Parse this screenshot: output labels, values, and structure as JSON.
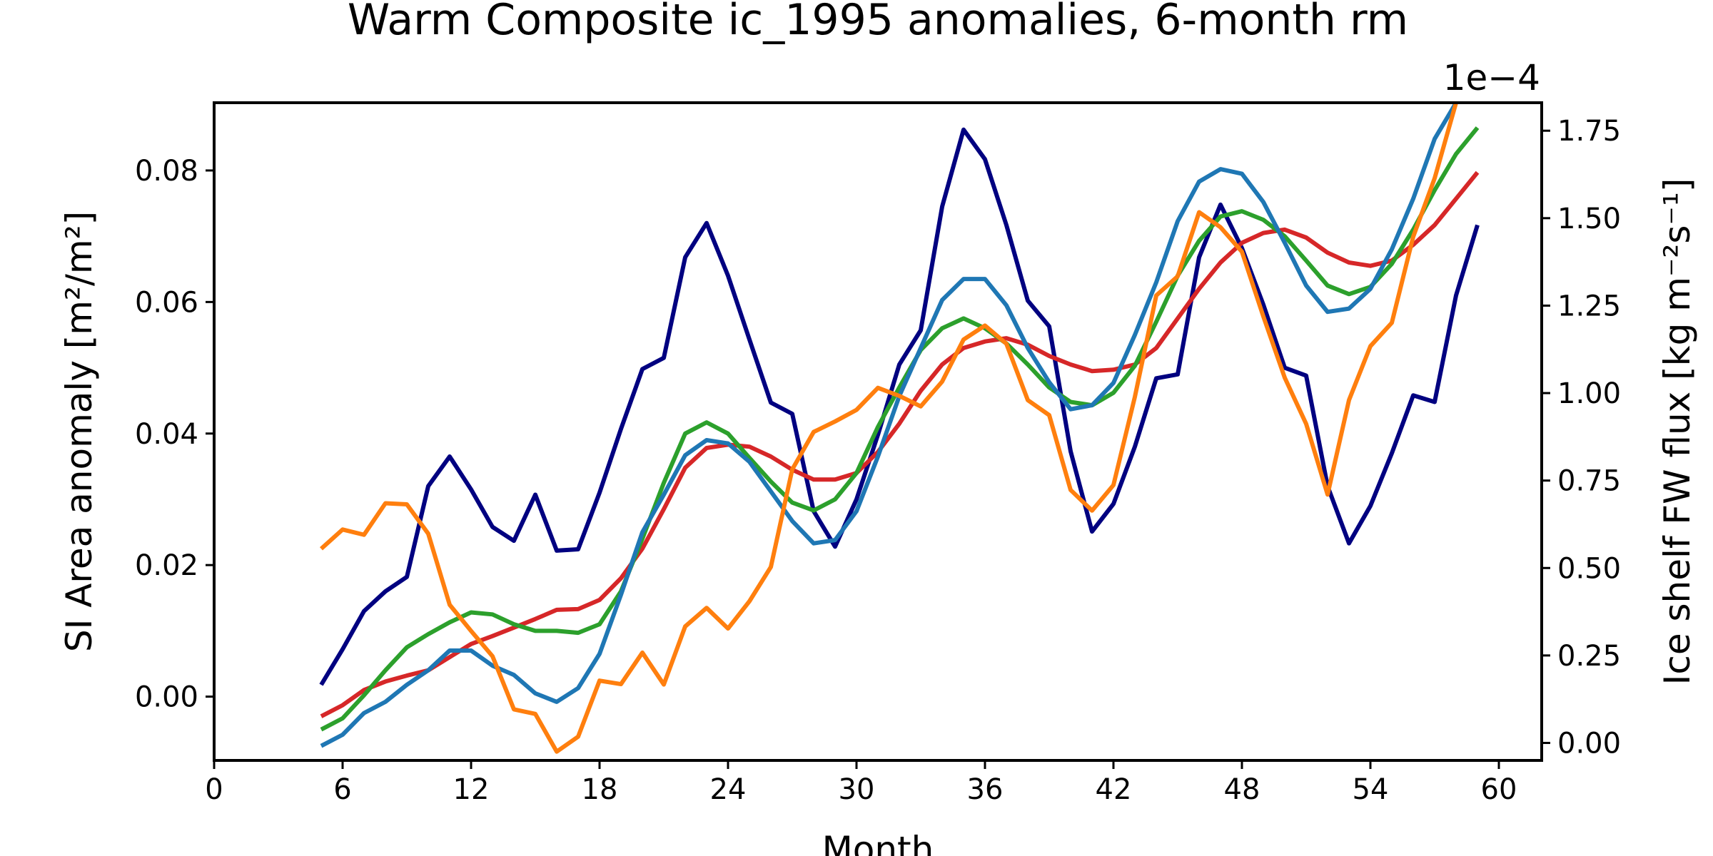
{
  "chart_data": {
    "type": "line",
    "title": "Warm Composite ic_1995 anomalies, 6-month rm",
    "xlabel": "Month",
    "ylabel": "SI Area anomaly [m²/m²]",
    "ylabel_right": "Ice shelf FW flux [kg m⁻²s⁻¹]",
    "right_axis_offset_label": "1e−4",
    "xlim": [
      0,
      62
    ],
    "ylim": [
      -0.0097,
      0.0903
    ],
    "ylim_right": [
      -0.05,
      1.83
    ],
    "xticks": [
      0,
      6,
      12,
      18,
      24,
      30,
      36,
      42,
      48,
      54,
      60
    ],
    "yticks_left": [
      0.0,
      0.02,
      0.04,
      0.06,
      0.08
    ],
    "yticks_left_labels": [
      "0.00",
      "0.02",
      "0.04",
      "0.06",
      "0.08"
    ],
    "yticks_right": [
      0.0,
      0.25,
      0.5,
      0.75,
      1.0,
      1.25,
      1.5,
      1.75
    ],
    "yticks_right_labels": [
      "0.00",
      "0.25",
      "0.50",
      "0.75",
      "1.00",
      "1.25",
      "1.50",
      "1.75"
    ],
    "grid": false,
    "legend": "none",
    "x": [
      5,
      6,
      7,
      8,
      9,
      10,
      11,
      12,
      13,
      14,
      15,
      16,
      17,
      18,
      19,
      20,
      21,
      22,
      23,
      24,
      25,
      26,
      27,
      28,
      29,
      30,
      31,
      32,
      33,
      34,
      35,
      36,
      37,
      38,
      39,
      40,
      41,
      42,
      43,
      44,
      45,
      46,
      47,
      48,
      49,
      50,
      51,
      52,
      53,
      54,
      55,
      56,
      57,
      58,
      59
    ],
    "series": [
      {
        "axis": "left",
        "color": "#000080",
        "values": [
          0.0018,
          0.0072,
          0.013,
          0.016,
          0.0182,
          0.032,
          0.0365,
          0.0315,
          0.0258,
          0.0237,
          0.0307,
          0.0222,
          0.0224,
          0.031,
          0.0407,
          0.0498,
          0.0515,
          0.0668,
          0.072,
          0.064,
          0.0543,
          0.0447,
          0.043,
          0.0282,
          0.0228,
          0.03,
          0.0398,
          0.0505,
          0.0557,
          0.0745,
          0.0862,
          0.0817,
          0.0717,
          0.0602,
          0.0563,
          0.0373,
          0.0251,
          0.0293,
          0.038,
          0.0484,
          0.049,
          0.0668,
          0.0748,
          0.0682,
          0.0596,
          0.05,
          0.0488,
          0.032,
          0.0233,
          0.029,
          0.037,
          0.0458,
          0.0448,
          0.061,
          0.0717
        ]
      },
      {
        "axis": "left",
        "color": "#d62728",
        "values": [
          -0.003,
          -0.0013,
          0.001,
          0.0023,
          0.0032,
          0.004,
          0.006,
          0.008,
          0.0092,
          0.0105,
          0.0118,
          0.0132,
          0.0133,
          0.0147,
          0.018,
          0.0225,
          0.0285,
          0.0348,
          0.0378,
          0.0383,
          0.038,
          0.0365,
          0.0345,
          0.033,
          0.033,
          0.034,
          0.0372,
          0.0415,
          0.0465,
          0.0505,
          0.053,
          0.054,
          0.0545,
          0.0535,
          0.0518,
          0.0505,
          0.0495,
          0.0497,
          0.0505,
          0.053,
          0.0575,
          0.062,
          0.066,
          0.069,
          0.0705,
          0.071,
          0.0698,
          0.0675,
          0.066,
          0.0655,
          0.0663,
          0.0687,
          0.0717,
          0.0757,
          0.0797
        ]
      },
      {
        "axis": "left",
        "color": "#2ca02c",
        "values": [
          -0.005,
          -0.0033,
          0.0002,
          0.004,
          0.0075,
          0.0095,
          0.0113,
          0.0128,
          0.0125,
          0.011,
          0.01,
          0.01,
          0.0097,
          0.011,
          0.016,
          0.024,
          0.0325,
          0.04,
          0.0417,
          0.04,
          0.0363,
          0.0327,
          0.0295,
          0.0283,
          0.03,
          0.034,
          0.041,
          0.047,
          0.0527,
          0.056,
          0.0575,
          0.056,
          0.0537,
          0.0505,
          0.047,
          0.0448,
          0.0443,
          0.0462,
          0.0503,
          0.057,
          0.064,
          0.0693,
          0.073,
          0.0738,
          0.0725,
          0.07,
          0.0663,
          0.0625,
          0.0612,
          0.0623,
          0.0658,
          0.071,
          0.077,
          0.0825,
          0.0865
        ]
      },
      {
        "axis": "left",
        "color": "#1f77b4",
        "values": [
          -0.0075,
          -0.0058,
          -0.0025,
          -0.0008,
          0.0018,
          0.004,
          0.007,
          0.007,
          0.0047,
          0.0033,
          0.0005,
          -0.0008,
          0.0013,
          0.0065,
          0.0155,
          0.025,
          0.0307,
          0.0367,
          0.039,
          0.0385,
          0.0357,
          0.0312,
          0.0267,
          0.0233,
          0.0238,
          0.0282,
          0.0365,
          0.0457,
          0.053,
          0.0603,
          0.0635,
          0.0635,
          0.0595,
          0.053,
          0.0478,
          0.0437,
          0.0443,
          0.0477,
          0.055,
          0.063,
          0.0723,
          0.0783,
          0.0802,
          0.0795,
          0.0752,
          0.069,
          0.0625,
          0.0585,
          0.059,
          0.062,
          0.068,
          0.0757,
          0.0848,
          0.0903,
          0.0975
        ]
      },
      {
        "axis": "right",
        "color": "#ff7f0e",
        "values": [
          0.555,
          0.61,
          0.595,
          0.685,
          0.682,
          0.598,
          0.395,
          0.32,
          0.248,
          0.096,
          0.083,
          -0.025,
          0.018,
          0.178,
          0.168,
          0.258,
          0.167,
          0.333,
          0.386,
          0.327,
          0.405,
          0.503,
          0.782,
          0.889,
          0.919,
          0.952,
          1.015,
          0.992,
          0.962,
          1.033,
          1.153,
          1.193,
          1.141,
          0.98,
          0.937,
          0.723,
          0.664,
          0.737,
          0.989,
          1.279,
          1.334,
          1.517,
          1.474,
          1.404,
          1.219,
          1.044,
          0.912,
          0.71,
          0.98,
          1.134,
          1.201,
          1.447,
          1.614,
          1.83,
          1.893
        ]
      }
    ]
  }
}
